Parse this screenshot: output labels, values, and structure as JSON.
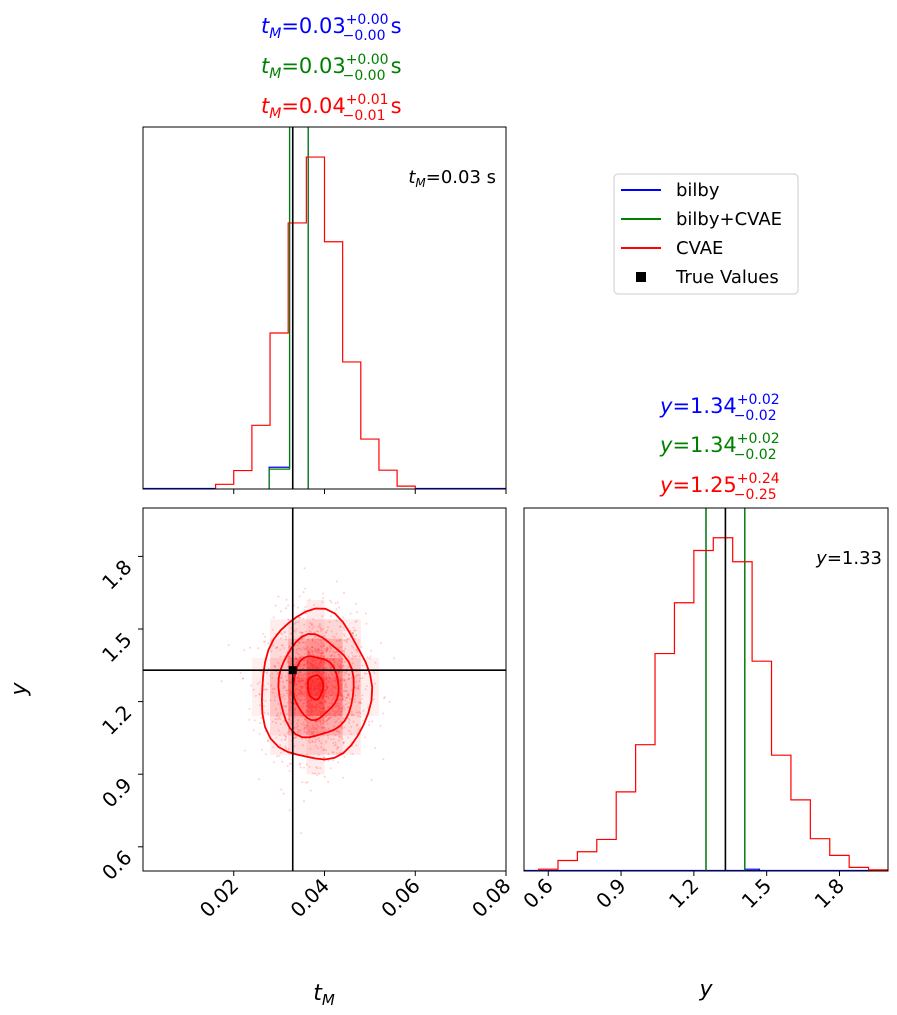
{
  "colors": {
    "blue": "#0000ff",
    "green": "#008000",
    "red": "#ff0000",
    "black": "#000000"
  },
  "legend": {
    "items": [
      {
        "label": "bilby",
        "kind": "line",
        "color": "#0000ff"
      },
      {
        "label": "bilby+CVAE",
        "kind": "line",
        "color": "#008000"
      },
      {
        "label": "CVAE",
        "kind": "line",
        "color": "#ff0000"
      },
      {
        "label": "True Values",
        "kind": "square",
        "color": "#000000"
      }
    ]
  },
  "titles": {
    "tM": [
      {
        "var": "t",
        "sub": "M",
        "value": "=0.03",
        "plus": "+0.00",
        "minus": "−0.00",
        "unit": " s",
        "color": "#0000ff"
      },
      {
        "var": "t",
        "sub": "M",
        "value": "=0.03",
        "plus": "+0.00",
        "minus": "−0.00",
        "unit": " s",
        "color": "#008000"
      },
      {
        "var": "t",
        "sub": "M",
        "value": "=0.04",
        "plus": "+0.01",
        "minus": "−0.01",
        "unit": " s",
        "color": "#ff0000"
      }
    ],
    "y": [
      {
        "var": "y",
        "value": "=1.34",
        "plus": "+0.02",
        "minus": "−0.02",
        "color": "#0000ff"
      },
      {
        "var": "y",
        "value": "=1.34",
        "plus": "+0.02",
        "minus": "−0.02",
        "color": "#008000"
      },
      {
        "var": "y",
        "value": "=1.25",
        "plus": "+0.24",
        "minus": "−0.25",
        "color": "#ff0000"
      }
    ]
  },
  "annotations": {
    "tM_true": {
      "var": "t",
      "sub": "M",
      "text": "=0.03 s"
    },
    "y_true": {
      "var": "y",
      "text": "=1.33"
    }
  },
  "axis_labels": {
    "x_left": {
      "var": "t",
      "sub": "M"
    },
    "x_right": {
      "var": "y"
    },
    "y_left": {
      "var": "y"
    }
  },
  "chart_data": {
    "type": "corner",
    "parameters": [
      "t_M",
      "y"
    ],
    "true_values": {
      "t_M": 0.033,
      "y": 1.33
    },
    "t_M": {
      "xlim": [
        0.0,
        0.08
      ],
      "ticks": [
        0.02,
        0.04,
        0.06,
        0.08
      ],
      "tick_labels": [
        "0.02",
        "0.04",
        "0.06",
        "0.08"
      ],
      "hist_ylim": [
        0,
        1.0
      ],
      "cvae_edges": [
        0.016,
        0.02,
        0.024,
        0.028,
        0.032,
        0.036,
        0.04,
        0.044,
        0.048,
        0.052,
        0.056,
        0.06
      ],
      "cvae_heights": [
        0.013,
        0.051,
        0.176,
        0.431,
        0.735,
        0.917,
        0.683,
        0.351,
        0.138,
        0.052,
        0.008
      ],
      "bilby_edges": [
        0.0278,
        0.0323,
        0.0326,
        0.0356,
        0.0364
      ],
      "bilby_heights": [
        0.06,
        1.5,
        1.5,
        1.5
      ],
      "bilby_cvae_edges": [
        0.0278,
        0.0323,
        0.0326,
        0.0356,
        0.0364
      ],
      "bilby_cvae_heights": [
        0.055,
        1.5,
        1.5,
        1.5
      ]
    },
    "y": {
      "xlim": [
        0.5,
        2.0
      ],
      "ticks": [
        0.6,
        0.9,
        1.2,
        1.5,
        1.8
      ],
      "tick_labels": [
        "0.6",
        "0.9",
        "1.2",
        "1.5",
        "1.8"
      ],
      "hist_ylim": [
        0,
        1.0
      ],
      "cvae_edges": [
        0.56,
        0.64,
        0.72,
        0.8,
        0.88,
        0.96,
        1.04,
        1.12,
        1.2,
        1.28,
        1.36,
        1.44,
        1.52,
        1.6,
        1.68,
        1.76,
        1.84,
        1.92,
        2.0
      ],
      "cvae_heights": [
        0.005,
        0.029,
        0.053,
        0.087,
        0.218,
        0.348,
        0.599,
        0.739,
        0.883,
        0.918,
        0.852,
        0.578,
        0.319,
        0.196,
        0.089,
        0.043,
        0.01,
        0.003
      ],
      "bilby_cvae_lines": [
        1.25,
        1.41
      ],
      "bilby_edges": [
        1.25,
        1.41,
        1.47
      ],
      "bilby_heights": [
        1.5,
        0.005
      ]
    },
    "joint": {
      "xlim": [
        0.0,
        0.08
      ],
      "ylim": [
        0.5,
        2.0
      ],
      "y_ticks": [
        0.6,
        0.9,
        1.2,
        1.5,
        1.8
      ],
      "y_tick_labels": [
        "0.6",
        "0.9",
        "1.2",
        "1.5",
        "1.8"
      ],
      "x_tick_labels": [
        "0.02",
        "0.04",
        "0.06",
        "0.08"
      ],
      "center": {
        "t_M": 0.038,
        "y": 1.26
      },
      "contour_levels": [
        "0.12",
        "0.39",
        "0.68",
        "0.86"
      ],
      "contour_radii": [
        {
          "rx": 0.0017,
          "ry": 0.05
        },
        {
          "rx": 0.005,
          "ry": 0.13
        },
        {
          "rx": 0.0083,
          "ry": 0.21
        },
        {
          "rx": 0.0121,
          "ry": 0.31
        }
      ]
    }
  }
}
